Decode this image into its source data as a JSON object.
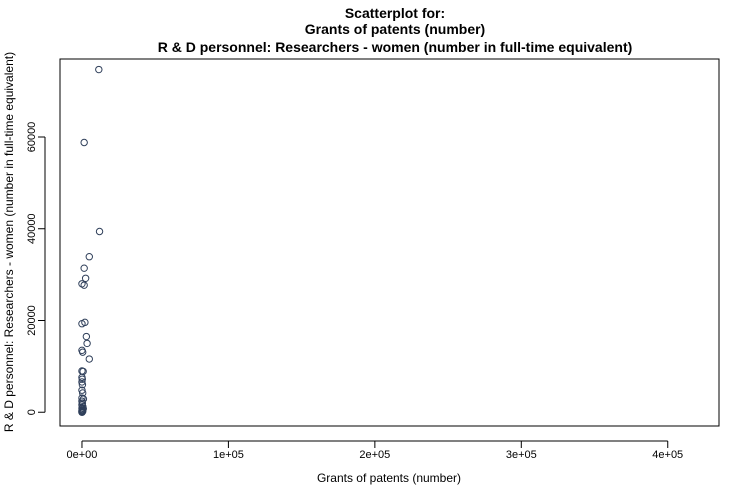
{
  "chart_data": {
    "type": "scatter",
    "title_lines": [
      "Scatterplot for:",
      "Grants of patents (number)",
      "R & D personnel: Researchers - women (number in full-time equivalent)"
    ],
    "xlabel": "Grants of patents (number)",
    "ylabel": "R & D personnel: Researchers - women (number in full-time equivalent)",
    "xlim": [
      -15000,
      435000
    ],
    "ylim": [
      -3000,
      77000
    ],
    "x_ticks": [
      {
        "value": 0,
        "label": "0e+00"
      },
      {
        "value": 100000,
        "label": "1e+05"
      },
      {
        "value": 200000,
        "label": "2e+05"
      },
      {
        "value": 300000,
        "label": "3e+05"
      },
      {
        "value": 400000,
        "label": "4e+05"
      }
    ],
    "y_ticks": [
      {
        "value": 0,
        "label": "0"
      },
      {
        "value": 20000,
        "label": "20000"
      },
      {
        "value": 40000,
        "label": "40000"
      },
      {
        "value": 60000,
        "label": "60000"
      }
    ],
    "point_color": "#2f3f5a",
    "points": [
      {
        "x": 11500,
        "y": 74700
      },
      {
        "x": 1500,
        "y": 58800
      },
      {
        "x": 12000,
        "y": 39400
      },
      {
        "x": 5000,
        "y": 33900
      },
      {
        "x": 1500,
        "y": 31400
      },
      {
        "x": 2500,
        "y": 29200
      },
      {
        "x": 0,
        "y": 28000
      },
      {
        "x": 1500,
        "y": 27700
      },
      {
        "x": 2000,
        "y": 19600
      },
      {
        "x": 0,
        "y": 19300
      },
      {
        "x": 3000,
        "y": 16500
      },
      {
        "x": 3500,
        "y": 15000
      },
      {
        "x": 0,
        "y": 13500
      },
      {
        "x": 500,
        "y": 13100
      },
      {
        "x": 5000,
        "y": 11600
      },
      {
        "x": 0,
        "y": 9000
      },
      {
        "x": 800,
        "y": 8900
      },
      {
        "x": 0,
        "y": 7600
      },
      {
        "x": 200,
        "y": 7200
      },
      {
        "x": 0,
        "y": 6600
      },
      {
        "x": 300,
        "y": 6000
      },
      {
        "x": 0,
        "y": 4800
      },
      {
        "x": 500,
        "y": 4200
      },
      {
        "x": 0,
        "y": 3100
      },
      {
        "x": 1000,
        "y": 2900
      },
      {
        "x": 0,
        "y": 2400
      },
      {
        "x": 300,
        "y": 2000
      },
      {
        "x": 0,
        "y": 1600
      },
      {
        "x": 600,
        "y": 1200
      },
      {
        "x": 0,
        "y": 900
      },
      {
        "x": 200,
        "y": 600
      },
      {
        "x": 0,
        "y": 400
      },
      {
        "x": 500,
        "y": 200
      },
      {
        "x": 0,
        "y": 100
      },
      {
        "x": 100,
        "y": 0
      },
      {
        "x": 0,
        "y": 0
      },
      {
        "x": 400,
        "y": 300
      },
      {
        "x": 900,
        "y": 800
      }
    ]
  }
}
